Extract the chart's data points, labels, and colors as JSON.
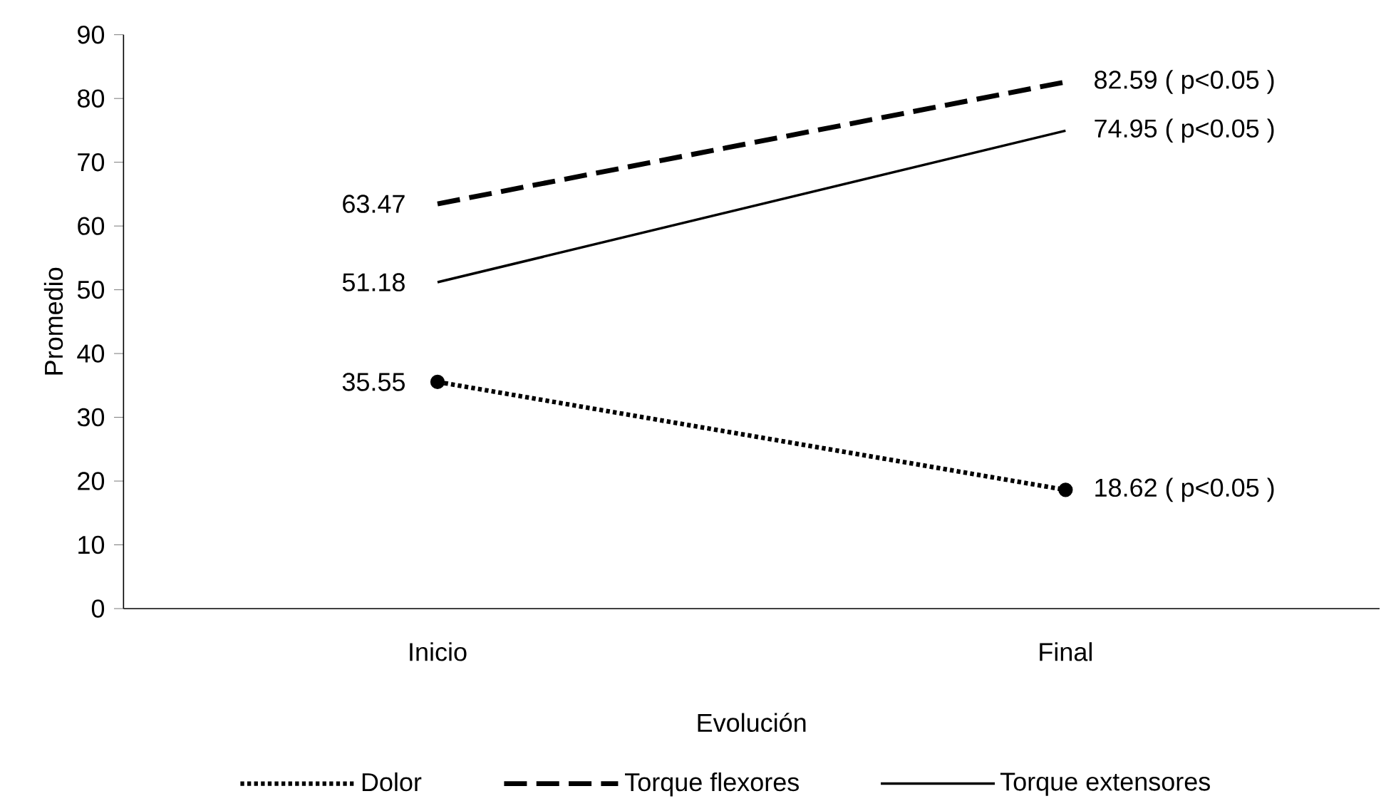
{
  "chart_data": {
    "type": "line",
    "xlabel": "Evolución",
    "ylabel": "Promedio",
    "categories": [
      "Inicio",
      "Final"
    ],
    "series": [
      {
        "name": "Dolor",
        "color": "#000000",
        "values": [
          35.55,
          18.62
        ],
        "line_style": "dotted",
        "marker": "circle",
        "value_labels": [
          "35.55",
          "18.62 ( p<0.05 )"
        ]
      },
      {
        "name": "Torque flexores",
        "color": "#000000",
        "values": [
          63.47,
          82.59
        ],
        "line_style": "dashed",
        "marker": "none",
        "value_labels": [
          "63.47",
          "82.59 ( p<0.05 )"
        ]
      },
      {
        "name": "Torque extensores",
        "color": "#000000",
        "values": [
          51.18,
          74.95
        ],
        "line_style": "solid",
        "marker": "none",
        "value_labels": [
          "51.18",
          "74.95 ( p<0.05 )"
        ]
      }
    ],
    "ylim": [
      0,
      90
    ],
    "yticks": [
      0,
      10,
      20,
      30,
      40,
      50,
      60,
      70,
      80,
      90
    ],
    "legend": "bottom"
  }
}
